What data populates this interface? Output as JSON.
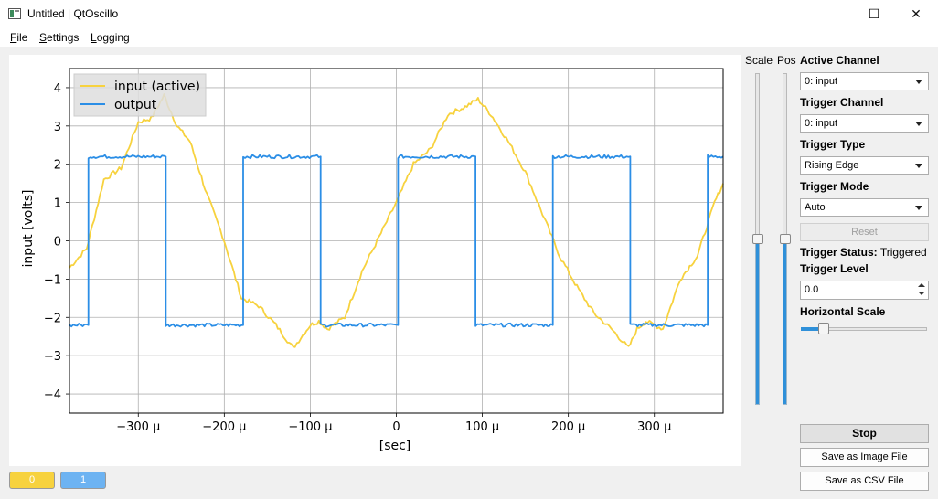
{
  "window": {
    "title": "Untitled | QtOscillo",
    "minimize_glyph": "—",
    "maximize_glyph": "☐",
    "close_glyph": "✕"
  },
  "menu": {
    "file": {
      "mnemonic": "F",
      "rest": "ile"
    },
    "settings": {
      "mnemonic": "S",
      "rest": "ettings"
    },
    "logging": {
      "mnemonic": "L",
      "rest": "ogging"
    }
  },
  "colors": {
    "input": "#f7d23e",
    "output": "#2b8ee6"
  },
  "chart_data": {
    "type": "line",
    "xlabel": "[sec]",
    "ylabel": "input [volts]",
    "xlim": [
      -0.00038,
      0.00038
    ],
    "ylim": [
      -4.5,
      4.5
    ],
    "xticks": [
      -0.0003,
      -0.0002,
      -0.0001,
      0,
      0.0001,
      0.0002,
      0.0003
    ],
    "xtick_labels": [
      "−300 µ",
      "−200 µ",
      "−100 µ",
      "0",
      "100 µ",
      "200 µ",
      "300 µ"
    ],
    "yticks": [
      -4,
      -3,
      -2,
      -1,
      0,
      1,
      2,
      3,
      4
    ],
    "ytick_labels": [
      "−4",
      "−3",
      "−2",
      "−1",
      "0",
      "1",
      "2",
      "3",
      "4"
    ],
    "grid": true,
    "legend": "top-left",
    "series": [
      {
        "name": "input (active)",
        "color": "#f7d23e",
        "x": [
          -0.00038,
          -0.00036,
          -0.00034,
          -0.00032,
          -0.0003,
          -0.000285,
          -0.00027,
          -0.000255,
          -0.00024,
          -0.00022,
          -0.0002,
          -0.00018,
          -0.00016,
          -0.00014,
          -0.00012,
          -0.0001,
          -9e-05,
          -8e-05,
          -6e-05,
          -4e-05,
          -2e-05,
          0.0,
          2e-05,
          4e-05,
          6e-05,
          8e-05,
          9.5e-05,
          0.00011,
          0.00013,
          0.00015,
          0.00017,
          0.00019,
          0.00021,
          0.00023,
          0.00025,
          0.00027,
          0.00028,
          0.00029,
          0.00031,
          0.00033,
          0.00035,
          0.00037,
          0.00038
        ],
        "values": [
          -0.7,
          -0.2,
          1.6,
          1.9,
          3.1,
          3.2,
          3.8,
          3.0,
          2.6,
          1.2,
          0.0,
          -1.5,
          -1.7,
          -2.2,
          -2.8,
          -2.2,
          -2.1,
          -2.3,
          -2.0,
          -0.8,
          0.1,
          1.0,
          2.0,
          2.4,
          3.3,
          3.5,
          3.7,
          3.3,
          2.6,
          1.8,
          0.7,
          -0.4,
          -1.2,
          -1.9,
          -2.3,
          -2.8,
          -2.3,
          -2.1,
          -2.3,
          -1.0,
          -0.4,
          1.0,
          1.5
        ]
      },
      {
        "name": "output",
        "color": "#2b8ee6",
        "x": [
          -0.00038,
          -0.000358,
          -0.000358,
          -0.000268,
          -0.000268,
          -0.000178,
          -0.000178,
          -8.8e-05,
          -8.8e-05,
          2e-06,
          2e-06,
          9.2e-05,
          9.2e-05,
          0.000182,
          0.000182,
          0.000272,
          0.000272,
          0.000362,
          0.000362,
          0.00038
        ],
        "values": [
          -2.2,
          -2.2,
          2.2,
          2.2,
          -2.2,
          -2.2,
          2.2,
          2.2,
          -2.2,
          -2.2,
          2.2,
          2.2,
          -2.2,
          -2.2,
          2.2,
          2.2,
          -2.2,
          -2.2,
          2.2,
          2.2
        ]
      }
    ]
  },
  "side": {
    "scale_label": "Scale",
    "pos_label": "Pos",
    "scale_value": 0.5,
    "pos_value": 0.5,
    "active_channel_label": "Active Channel",
    "active_channel_value": "0: input",
    "trigger_channel_label": "Trigger Channel",
    "trigger_channel_value": "0: input",
    "trigger_type_label": "Trigger Type",
    "trigger_type_value": "Rising Edge",
    "trigger_mode_label": "Trigger Mode",
    "trigger_mode_value": "Auto",
    "reset_label": "Reset",
    "trigger_status_label": "Trigger Status:",
    "trigger_status_value": "Triggered",
    "trigger_level_label": "Trigger Level",
    "trigger_level_value": "0.0",
    "horizontal_scale_label": "Horizontal Scale",
    "horizontal_scale_value": 0.18,
    "stop_label": "Stop",
    "save_image_label": "Save as Image File",
    "save_csv_label": "Save as CSV File"
  },
  "channels": [
    {
      "label": "0",
      "color": "#f7d23e"
    },
    {
      "label": "1",
      "color": "#6db3f2"
    }
  ]
}
